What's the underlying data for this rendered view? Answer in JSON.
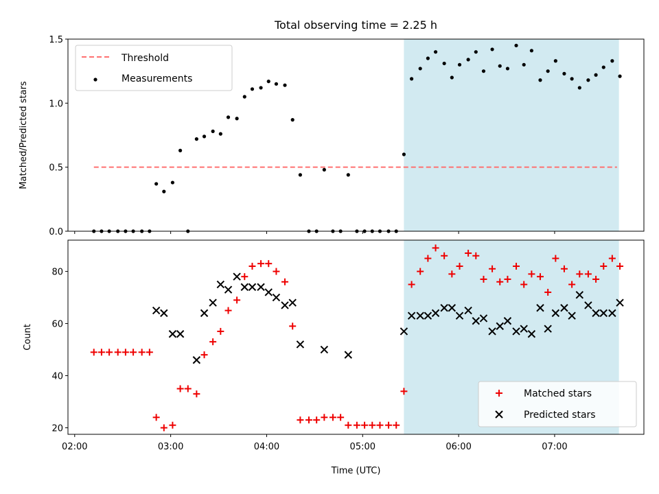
{
  "title": "Total observing time = 2.25 h",
  "colors": {
    "threshold": "#ff7070",
    "measurements": "#000000",
    "matched": "#ee0000",
    "predicted": "#000000",
    "shade": "#add8e6"
  },
  "chart_data": [
    {
      "type": "scatter",
      "ylabel": "Matched/Predicted stars",
      "ylim": [
        0,
        1.5
      ],
      "yticks": [
        0.0,
        0.5,
        1.0,
        1.5
      ],
      "ytick_labels": [
        "0.0",
        "0.5",
        "1.0",
        "1.5"
      ],
      "xlim_hours": [
        1.93,
        7.93
      ],
      "shaded_span_hours": [
        5.43,
        7.67
      ],
      "legend": {
        "placement": "upper left",
        "entries": [
          "Threshold",
          "Measurements"
        ]
      },
      "threshold": {
        "name": "Threshold",
        "value": 0.5,
        "x_range_hours": [
          2.2,
          7.65
        ],
        "style": "dashed"
      },
      "series": [
        {
          "name": "Measurements",
          "x_hours": [
            2.2,
            2.28,
            2.36,
            2.45,
            2.53,
            2.61,
            2.7,
            2.78,
            2.85,
            2.93,
            3.02,
            3.1,
            3.18,
            3.27,
            3.35,
            3.44,
            3.52,
            3.6,
            3.69,
            3.77,
            3.85,
            3.94,
            4.02,
            4.1,
            4.19,
            4.27,
            4.35,
            4.44,
            4.52,
            4.6,
            4.69,
            4.77,
            4.85,
            4.94,
            5.02,
            5.1,
            5.18,
            5.27,
            5.35,
            5.43,
            5.51,
            5.6,
            5.68,
            5.76,
            5.85,
            5.93,
            6.01,
            6.1,
            6.18,
            6.26,
            6.35,
            6.43,
            6.51,
            6.6,
            6.68,
            6.76,
            6.85,
            6.93,
            7.01,
            7.1,
            7.18,
            7.26,
            7.35,
            7.43,
            7.51,
            7.6,
            7.68
          ],
          "y": [
            0,
            0,
            0,
            0,
            0,
            0,
            0,
            0,
            0.37,
            0.31,
            0.38,
            0.63,
            0,
            0.72,
            0.74,
            0.78,
            0.76,
            0.89,
            0.88,
            1.05,
            1.11,
            1.12,
            1.17,
            1.15,
            1.14,
            0.87,
            0.44,
            0,
            0,
            0.48,
            0,
            0,
            0.44,
            0,
            0,
            0,
            0,
            0,
            0,
            0.6,
            1.19,
            1.27,
            1.35,
            1.4,
            1.31,
            1.2,
            1.3,
            1.34,
            1.4,
            1.25,
            1.42,
            1.29,
            1.27,
            1.45,
            1.3,
            1.41,
            1.18,
            1.25,
            1.33,
            1.23,
            1.19,
            1.12,
            1.18,
            1.22,
            1.28,
            1.33,
            1.21
          ]
        }
      ]
    },
    {
      "type": "scatter",
      "xlabel": "Time (UTC)",
      "ylabel": "Count",
      "ylim": [
        17.5,
        92
      ],
      "yticks": [
        20,
        40,
        60,
        80
      ],
      "ytick_labels": [
        "20",
        "40",
        "60",
        "80"
      ],
      "xlim_hours": [
        1.93,
        7.93
      ],
      "xticks_hours": [
        2,
        3,
        4,
        5,
        6,
        7
      ],
      "xtick_labels": [
        "02:00",
        "03:00",
        "04:00",
        "05:00",
        "06:00",
        "07:00"
      ],
      "shaded_span_hours": [
        5.43,
        7.67
      ],
      "legend": {
        "placement": "lower right",
        "entries": [
          "Matched stars",
          "Predicted stars"
        ]
      },
      "series": [
        {
          "name": "Matched stars",
          "marker": "+",
          "x_hours": [
            2.2,
            2.28,
            2.36,
            2.45,
            2.53,
            2.61,
            2.7,
            2.78,
            2.85,
            2.93,
            3.02,
            3.1,
            3.18,
            3.27,
            3.35,
            3.44,
            3.52,
            3.6,
            3.69,
            3.77,
            3.85,
            3.94,
            4.02,
            4.1,
            4.19,
            4.27,
            4.35,
            4.44,
            4.52,
            4.6,
            4.69,
            4.77,
            4.85,
            4.94,
            5.02,
            5.1,
            5.18,
            5.27,
            5.35,
            5.43,
            5.51,
            5.6,
            5.68,
            5.76,
            5.85,
            5.93,
            6.01,
            6.1,
            6.18,
            6.26,
            6.35,
            6.43,
            6.51,
            6.6,
            6.68,
            6.76,
            6.85,
            6.93,
            7.01,
            7.1,
            7.18,
            7.26,
            7.35,
            7.43,
            7.51,
            7.6,
            7.68
          ],
          "y": [
            49,
            49,
            49,
            49,
            49,
            49,
            49,
            49,
            24,
            20,
            21,
            35,
            35,
            33,
            48,
            53,
            57,
            65,
            69,
            78,
            82,
            83,
            83,
            80,
            76,
            59,
            23,
            23,
            23,
            24,
            24,
            24,
            21,
            21,
            21,
            21,
            21,
            21,
            21,
            34,
            75,
            80,
            85,
            89,
            86,
            79,
            82,
            87,
            86,
            77,
            81,
            76,
            77,
            82,
            75,
            79,
            78,
            72,
            85,
            81,
            75,
            79,
            79,
            77,
            82,
            85,
            82
          ]
        },
        {
          "name": "Predicted stars",
          "marker": "x",
          "x_hours": [
            2.85,
            2.93,
            3.02,
            3.1,
            3.27,
            3.35,
            3.44,
            3.52,
            3.6,
            3.69,
            3.77,
            3.85,
            3.94,
            4.02,
            4.1,
            4.19,
            4.27,
            4.35,
            4.6,
            4.85,
            5.43,
            5.51,
            5.6,
            5.68,
            5.76,
            5.85,
            5.93,
            6.01,
            6.1,
            6.18,
            6.26,
            6.35,
            6.43,
            6.51,
            6.6,
            6.68,
            6.76,
            6.85,
            6.93,
            7.01,
            7.1,
            7.18,
            7.26,
            7.35,
            7.43,
            7.51,
            7.6,
            7.68
          ],
          "y": [
            65,
            64,
            56,
            56,
            46,
            64,
            68,
            75,
            73,
            78,
            74,
            74,
            74,
            72,
            70,
            67,
            68,
            52,
            50,
            48,
            57,
            63,
            63,
            63,
            64,
            66,
            66,
            63,
            65,
            61,
            62,
            57,
            59,
            61,
            57,
            58,
            56,
            66,
            58,
            64,
            66,
            63,
            71,
            67,
            64,
            64,
            64,
            68
          ]
        }
      ]
    }
  ]
}
